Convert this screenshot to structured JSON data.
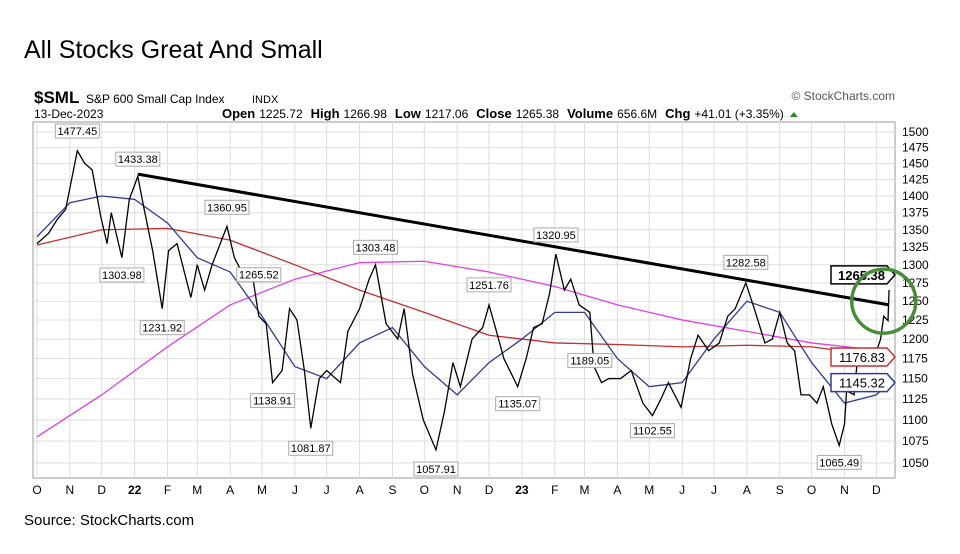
{
  "slide_title": "All Stocks Great And Small",
  "source": "Source: StockCharts.com",
  "chart_data": {
    "type": "line",
    "symbol": "$SML",
    "name": "S&P 600 Small Cap Index",
    "exchange": "INDX",
    "date": "13-Dec-2023",
    "watermark": "© StockCharts.com",
    "quote": [
      {
        "k": "Open",
        "v": "1225.72"
      },
      {
        "k": "High",
        "v": "1266.98"
      },
      {
        "k": "Low",
        "v": "1217.06"
      },
      {
        "k": "Close",
        "v": "1265.38"
      },
      {
        "k": "Volume",
        "v": "656.6M"
      },
      {
        "k": "Chg",
        "v": "+41.01 (+3.35%)"
      }
    ],
    "y_scale": "log",
    "ylim": [
      1040,
      1510
    ],
    "y_ticks": [
      1050,
      1075,
      1100,
      1125,
      1150,
      1175,
      1200,
      1225,
      1250,
      1275,
      1300,
      1325,
      1350,
      1375,
      1400,
      1425,
      1450,
      1475,
      1500
    ],
    "x_ticks": [
      {
        "d": "2021-10-01",
        "l": "O"
      },
      {
        "d": "2021-11-01",
        "l": "N"
      },
      {
        "d": "2021-12-01",
        "l": "D"
      },
      {
        "d": "2022-01-01",
        "l": "22"
      },
      {
        "d": "2022-02-01",
        "l": "F"
      },
      {
        "d": "2022-03-01",
        "l": "M"
      },
      {
        "d": "2022-04-01",
        "l": "A"
      },
      {
        "d": "2022-05-01",
        "l": "M"
      },
      {
        "d": "2022-06-01",
        "l": "J"
      },
      {
        "d": "2022-07-01",
        "l": "J"
      },
      {
        "d": "2022-08-01",
        "l": "A"
      },
      {
        "d": "2022-09-01",
        "l": "S"
      },
      {
        "d": "2022-10-01",
        "l": "O"
      },
      {
        "d": "2022-11-01",
        "l": "N"
      },
      {
        "d": "2022-12-01",
        "l": "D"
      },
      {
        "d": "2023-01-01",
        "l": "23"
      },
      {
        "d": "2023-02-01",
        "l": "F"
      },
      {
        "d": "2023-03-01",
        "l": "M"
      },
      {
        "d": "2023-04-01",
        "l": "A"
      },
      {
        "d": "2023-05-01",
        "l": "M"
      },
      {
        "d": "2023-06-01",
        "l": "J"
      },
      {
        "d": "2023-07-01",
        "l": "J"
      },
      {
        "d": "2023-08-01",
        "l": "A"
      },
      {
        "d": "2023-09-01",
        "l": "S"
      },
      {
        "d": "2023-10-01",
        "l": "O"
      },
      {
        "d": "2023-11-01",
        "l": "N"
      },
      {
        "d": "2023-12-01",
        "l": "D"
      }
    ],
    "grid": true,
    "price": {
      "color": "#000000",
      "points": [
        [
          "2021-10-01",
          1330
        ],
        [
          "2021-10-12",
          1345
        ],
        [
          "2021-10-20",
          1365
        ],
        [
          "2021-10-28",
          1380
        ],
        [
          "2021-11-08",
          1470
        ],
        [
          "2021-11-15",
          1450
        ],
        [
          "2021-11-22",
          1440
        ],
        [
          "2021-11-30",
          1370
        ],
        [
          "2021-12-06",
          1330
        ],
        [
          "2021-12-10",
          1375
        ],
        [
          "2021-12-20",
          1310
        ],
        [
          "2021-12-27",
          1395
        ],
        [
          "2022-01-04",
          1430
        ],
        [
          "2022-01-10",
          1380
        ],
        [
          "2022-01-18",
          1320
        ],
        [
          "2022-01-27",
          1240
        ],
        [
          "2022-02-02",
          1320
        ],
        [
          "2022-02-10",
          1330
        ],
        [
          "2022-02-23",
          1255
        ],
        [
          "2022-03-01",
          1300
        ],
        [
          "2022-03-08",
          1265
        ],
        [
          "2022-03-15",
          1300
        ],
        [
          "2022-03-29",
          1355
        ],
        [
          "2022-04-05",
          1310
        ],
        [
          "2022-04-12",
          1290
        ],
        [
          "2022-04-21",
          1295
        ],
        [
          "2022-04-28",
          1230
        ],
        [
          "2022-05-05",
          1220
        ],
        [
          "2022-05-11",
          1145
        ],
        [
          "2022-05-20",
          1160
        ],
        [
          "2022-05-27",
          1240
        ],
        [
          "2022-06-03",
          1225
        ],
        [
          "2022-06-10",
          1160
        ],
        [
          "2022-06-16",
          1090
        ],
        [
          "2022-06-24",
          1150
        ],
        [
          "2022-07-01",
          1160
        ],
        [
          "2022-07-14",
          1145
        ],
        [
          "2022-07-21",
          1210
        ],
        [
          "2022-08-01",
          1240
        ],
        [
          "2022-08-10",
          1280
        ],
        [
          "2022-08-16",
          1300
        ],
        [
          "2022-08-26",
          1220
        ],
        [
          "2022-09-06",
          1200
        ],
        [
          "2022-09-12",
          1240
        ],
        [
          "2022-09-20",
          1155
        ],
        [
          "2022-09-30",
          1100
        ],
        [
          "2022-10-12",
          1065
        ],
        [
          "2022-10-20",
          1110
        ],
        [
          "2022-10-28",
          1170
        ],
        [
          "2022-11-04",
          1140
        ],
        [
          "2022-11-15",
          1200
        ],
        [
          "2022-11-25",
          1215
        ],
        [
          "2022-12-01",
          1245
        ],
        [
          "2022-12-08",
          1210
        ],
        [
          "2022-12-15",
          1175
        ],
        [
          "2022-12-28",
          1140
        ],
        [
          "2023-01-05",
          1175
        ],
        [
          "2023-01-12",
          1215
        ],
        [
          "2023-01-20",
          1220
        ],
        [
          "2023-01-27",
          1260
        ],
        [
          "2023-02-02",
          1315
        ],
        [
          "2023-02-10",
          1265
        ],
        [
          "2023-02-16",
          1280
        ],
        [
          "2023-02-24",
          1245
        ],
        [
          "2023-03-06",
          1235
        ],
        [
          "2023-03-10",
          1165
        ],
        [
          "2023-03-17",
          1145
        ],
        [
          "2023-03-24",
          1150
        ],
        [
          "2023-04-04",
          1150
        ],
        [
          "2023-04-14",
          1160
        ],
        [
          "2023-04-25",
          1120
        ],
        [
          "2023-05-04",
          1105
        ],
        [
          "2023-05-12",
          1125
        ],
        [
          "2023-05-19",
          1145
        ],
        [
          "2023-05-31",
          1115
        ],
        [
          "2023-06-09",
          1175
        ],
        [
          "2023-06-16",
          1205
        ],
        [
          "2023-06-26",
          1185
        ],
        [
          "2023-07-06",
          1195
        ],
        [
          "2023-07-14",
          1230
        ],
        [
          "2023-07-21",
          1240
        ],
        [
          "2023-07-31",
          1275
        ],
        [
          "2023-08-08",
          1240
        ],
        [
          "2023-08-18",
          1195
        ],
        [
          "2023-08-25",
          1200
        ],
        [
          "2023-09-01",
          1235
        ],
        [
          "2023-09-08",
          1195
        ],
        [
          "2023-09-15",
          1185
        ],
        [
          "2023-09-21",
          1130
        ],
        [
          "2023-09-29",
          1130
        ],
        [
          "2023-10-06",
          1120
        ],
        [
          "2023-10-12",
          1140
        ],
        [
          "2023-10-20",
          1095
        ],
        [
          "2023-10-27",
          1070
        ],
        [
          "2023-11-01",
          1095
        ],
        [
          "2023-11-03",
          1135
        ],
        [
          "2023-11-10",
          1130
        ],
        [
          "2023-11-14",
          1185
        ],
        [
          "2023-11-22",
          1175
        ],
        [
          "2023-11-30",
          1180
        ],
        [
          "2023-12-05",
          1200
        ],
        [
          "2023-12-08",
          1230
        ],
        [
          "2023-12-12",
          1224
        ],
        [
          "2023-12-13",
          1265.38
        ]
      ]
    },
    "moving_averages": [
      {
        "color": "#e040e0",
        "label": "",
        "points": [
          [
            "2021-10-01",
            1080
          ],
          [
            "2021-12-01",
            1130
          ],
          [
            "2022-02-01",
            1190
          ],
          [
            "2022-04-01",
            1245
          ],
          [
            "2022-06-01",
            1280
          ],
          [
            "2022-08-01",
            1303
          ],
          [
            "2022-10-01",
            1305
          ],
          [
            "2022-12-01",
            1290
          ],
          [
            "2023-02-01",
            1270
          ],
          [
            "2023-04-01",
            1245
          ],
          [
            "2023-06-01",
            1225
          ],
          [
            "2023-08-01",
            1210
          ],
          [
            "2023-10-01",
            1195
          ],
          [
            "2023-12-13",
            1184
          ]
        ]
      },
      {
        "color": "#c03030",
        "label": "1176.83",
        "points": [
          [
            "2021-10-01",
            1328
          ],
          [
            "2021-12-01",
            1350
          ],
          [
            "2022-02-01",
            1352
          ],
          [
            "2022-04-01",
            1335
          ],
          [
            "2022-06-01",
            1300
          ],
          [
            "2022-08-01",
            1265
          ],
          [
            "2022-10-01",
            1235
          ],
          [
            "2022-12-01",
            1205
          ],
          [
            "2023-02-01",
            1195
          ],
          [
            "2023-04-01",
            1193
          ],
          [
            "2023-06-01",
            1190
          ],
          [
            "2023-08-01",
            1192
          ],
          [
            "2023-10-01",
            1190
          ],
          [
            "2023-12-13",
            1177
          ]
        ]
      },
      {
        "color": "#303c8c",
        "label": "1145.32",
        "points": [
          [
            "2021-10-01",
            1340
          ],
          [
            "2021-11-01",
            1390
          ],
          [
            "2021-12-01",
            1400
          ],
          [
            "2022-01-01",
            1395
          ],
          [
            "2022-02-01",
            1360
          ],
          [
            "2022-03-01",
            1310
          ],
          [
            "2022-04-01",
            1290
          ],
          [
            "2022-05-01",
            1230
          ],
          [
            "2022-06-01",
            1165
          ],
          [
            "2022-07-01",
            1150
          ],
          [
            "2022-08-01",
            1195
          ],
          [
            "2022-09-01",
            1215
          ],
          [
            "2022-10-01",
            1165
          ],
          [
            "2022-11-01",
            1130
          ],
          [
            "2022-12-01",
            1170
          ],
          [
            "2023-01-01",
            1200
          ],
          [
            "2023-02-01",
            1235
          ],
          [
            "2023-03-01",
            1235
          ],
          [
            "2023-04-01",
            1175
          ],
          [
            "2023-05-01",
            1140
          ],
          [
            "2023-06-01",
            1145
          ],
          [
            "2023-07-01",
            1200
          ],
          [
            "2023-08-01",
            1250
          ],
          [
            "2023-09-01",
            1235
          ],
          [
            "2023-10-01",
            1170
          ],
          [
            "2023-11-01",
            1120
          ],
          [
            "2023-12-01",
            1130
          ],
          [
            "2023-12-13",
            1145
          ]
        ]
      }
    ],
    "trendline": {
      "color": "#000000",
      "from": [
        "2022-01-04",
        1433.38
      ],
      "to": [
        "2023-12-13",
        1245
      ]
    },
    "last_price_label": "1265.38",
    "highlight_circle": {
      "color": "#4a8c3a",
      "center": [
        "2023-12-08",
        1250
      ]
    },
    "annotations": [
      [
        "2021-11-08",
        1477.45,
        "above"
      ],
      [
        "2022-01-04",
        1433.38,
        "above"
      ],
      [
        "2021-12-20",
        1303.98,
        "below"
      ],
      [
        "2022-01-27",
        1231.92,
        "below"
      ],
      [
        "2022-03-29",
        1360.95,
        "above"
      ],
      [
        "2022-04-28",
        1265.52,
        "above"
      ],
      [
        "2022-05-11",
        1138.91,
        "below"
      ],
      [
        "2022-06-16",
        1081.87,
        "below"
      ],
      [
        "2022-08-16",
        1303.48,
        "above"
      ],
      [
        "2022-10-12",
        1057.91,
        "below"
      ],
      [
        "2022-12-01",
        1251.76,
        "above"
      ],
      [
        "2022-12-28",
        1135.07,
        "below"
      ],
      [
        "2023-02-02",
        1320.95,
        "above"
      ],
      [
        "2023-03-06",
        1189.05,
        "below"
      ],
      [
        "2023-05-04",
        1102.55,
        "below"
      ],
      [
        "2023-07-31",
        1282.58,
        "above"
      ],
      [
        "2023-10-27",
        1065.49,
        "below"
      ]
    ]
  }
}
